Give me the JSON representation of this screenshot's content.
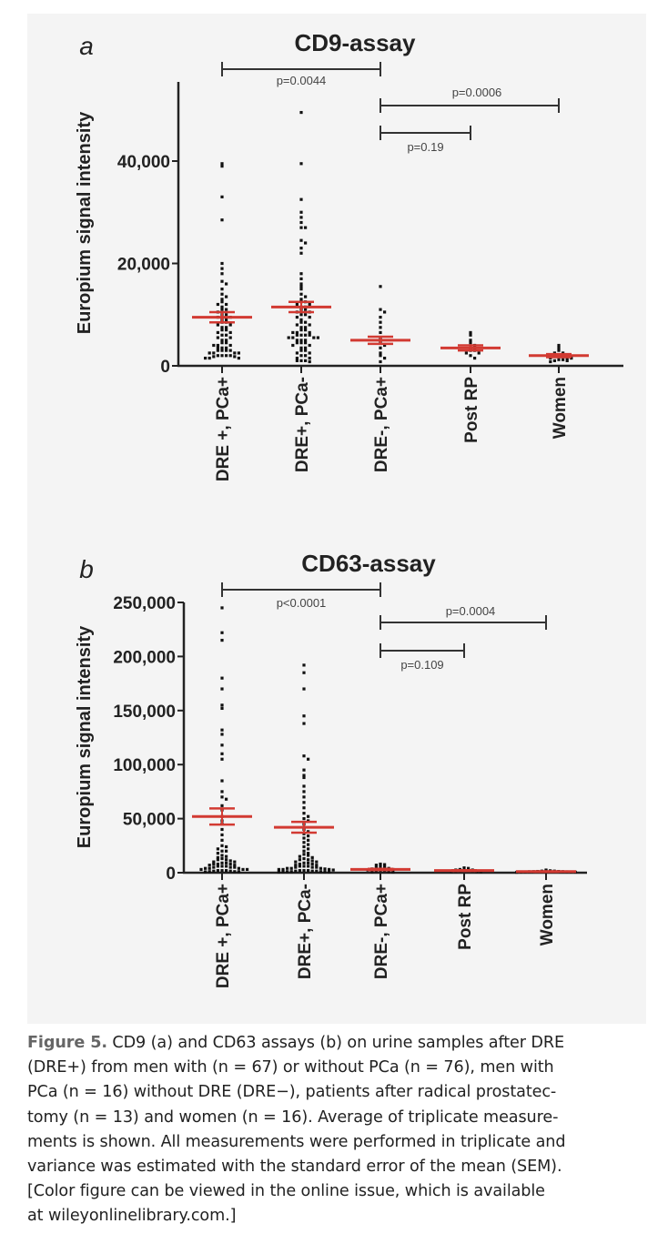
{
  "chart_data": [
    {
      "type": "scatter",
      "panel_label": "a",
      "title": "CD9-assay",
      "ylabel": "Europium signal intensity",
      "ylim": [
        0,
        55000
      ],
      "yticks": [
        0,
        20000,
        40000
      ],
      "ytick_labels": [
        "0",
        "20,000",
        "40,000"
      ],
      "categories": [
        "DRE +, PCa+",
        "DRE+, PCa-",
        "DRE-, PCa+",
        "Post RP",
        "Women"
      ],
      "point_color": "#111111",
      "mean_color": "#d23a32",
      "groups": [
        {
          "mean": 9500,
          "sem": 1000,
          "values": [
            39500,
            39000,
            33000,
            28500,
            20000,
            19000,
            18000,
            16500,
            16000,
            15000,
            14000,
            13500,
            13000,
            12500,
            12000,
            12000,
            11500,
            11000,
            11000,
            10500,
            10000,
            10000,
            9500,
            9500,
            9000,
            9000,
            8500,
            8500,
            8000,
            8000,
            7500,
            7500,
            7000,
            7000,
            6500,
            6500,
            6000,
            6000,
            5500,
            5500,
            5000,
            5000,
            4500,
            4500,
            4000,
            4000,
            4000,
            3500,
            3500,
            3500,
            3000,
            3000,
            3000,
            3000,
            2500,
            2500,
            2500,
            2500,
            2000,
            2000,
            2000,
            2000,
            1800,
            1800,
            1500,
            1500,
            1500
          ]
        },
        {
          "mean": 11500,
          "sem": 1000,
          "values": [
            49500,
            39500,
            32500,
            30000,
            29000,
            28000,
            27000,
            27000,
            24500,
            24000,
            23000,
            22000,
            18000,
            17000,
            16000,
            15500,
            15000,
            14000,
            13500,
            13000,
            12500,
            12500,
            12000,
            12000,
            11500,
            11500,
            11000,
            11000,
            10500,
            10500,
            10000,
            10000,
            9500,
            9500,
            9000,
            8500,
            8500,
            8000,
            8000,
            7500,
            7500,
            7000,
            7000,
            6500,
            6500,
            6500,
            6000,
            6000,
            6000,
            6000,
            5500,
            5500,
            5500,
            5500,
            5000,
            5000,
            5000,
            4500,
            4500,
            4500,
            4000,
            4000,
            3500,
            3500,
            3000,
            3000,
            2500,
            2500,
            2000,
            2000,
            1500,
            1500,
            1000,
            1000,
            1000,
            800
          ]
        },
        {
          "mean": 5000,
          "sem": 700,
          "values": [
            15500,
            11000,
            10500,
            9500,
            8500,
            7500,
            6500,
            5500,
            5000,
            4500,
            4000,
            3500,
            2500,
            2000,
            1500,
            800
          ]
        },
        {
          "mean": 3500,
          "sem": 500,
          "values": [
            6500,
            6000,
            5000,
            4500,
            4000,
            3500,
            3500,
            3000,
            3000,
            2500,
            2500,
            2000,
            1500
          ]
        },
        {
          "mean": 2000,
          "sem": 300,
          "values": [
            4000,
            3500,
            3000,
            2500,
            2500,
            2000,
            2000,
            2000,
            1500,
            1500,
            1500,
            1200,
            1200,
            1000,
            1000,
            800
          ]
        }
      ],
      "comparisons": [
        {
          "from": "DRE +, PCa+",
          "to": "DRE-, PCa+",
          "label": "p=0.0044"
        },
        {
          "from": "DRE-, PCa+",
          "to": "Women",
          "label": "p=0.0006"
        },
        {
          "from": "DRE-, PCa+",
          "to": "Post RP",
          "label": "p=0.19"
        }
      ]
    },
    {
      "type": "scatter",
      "panel_label": "b",
      "title": "CD63-assay",
      "ylabel": "Europium signal intensity",
      "ylim": [
        0,
        250000
      ],
      "yticks": [
        0,
        50000,
        100000,
        150000,
        200000,
        250000
      ],
      "ytick_labels": [
        "0",
        "50,000",
        "100,000",
        "150,000",
        "200,000",
        "250,000"
      ],
      "categories": [
        "DRE +, PCa+",
        "DRE+, PCa-",
        "DRE-, PCa+",
        "Post RP",
        "Women"
      ],
      "point_color": "#111111",
      "mean_color": "#d23a32",
      "groups": [
        {
          "mean": 52000,
          "sem": 7500,
          "values": [
            245000,
            222000,
            215000,
            180000,
            170000,
            155000,
            152000,
            132000,
            128000,
            118000,
            110000,
            105000,
            85000,
            75000,
            70000,
            68000,
            62000,
            58000,
            52000,
            48000,
            45000,
            40000,
            35000,
            30000,
            25000,
            24000,
            22000,
            20000,
            20000,
            18000,
            16000,
            15000,
            14000,
            13000,
            12000,
            12000,
            11000,
            10000,
            10000,
            9000,
            9000,
            8000,
            8000,
            8000,
            7000,
            7000,
            6000,
            6000,
            6000,
            5000,
            5000,
            5000,
            4000,
            4000,
            4000,
            3000,
            3000,
            3000,
            2000,
            2000,
            2000,
            1500,
            1500,
            1000,
            1000,
            1000,
            800
          ]
        },
        {
          "mean": 42000,
          "sem": 5000,
          "values": [
            192000,
            185000,
            170000,
            145000,
            138000,
            108000,
            105000,
            95000,
            90000,
            88000,
            80000,
            75000,
            70000,
            65000,
            60000,
            55000,
            52000,
            50000,
            48000,
            45000,
            42000,
            40000,
            38000,
            36000,
            34000,
            32000,
            30000,
            28000,
            26000,
            24000,
            22000,
            20000,
            18000,
            17000,
            16000,
            15000,
            14000,
            13000,
            12000,
            12000,
            11000,
            10000,
            10000,
            9000,
            9000,
            8000,
            8000,
            7000,
            7000,
            6000,
            6000,
            6000,
            5000,
            5000,
            5000,
            4000,
            4000,
            4000,
            3500,
            3000,
            3000,
            3000,
            2500,
            2000,
            2000,
            2000,
            1500,
            1500,
            1500,
            1000,
            1000,
            1000,
            800,
            800,
            600,
            500
          ]
        },
        {
          "mean": 3000,
          "sem": 600,
          "values": [
            8000,
            7500,
            7000,
            6000,
            5000,
            4500,
            4000,
            3500,
            3000,
            2500,
            2000,
            2000,
            1500,
            1000,
            800,
            500
          ]
        },
        {
          "mean": 2000,
          "sem": 300,
          "values": [
            4500,
            4000,
            3000,
            2500,
            2500,
            2000,
            2000,
            1500,
            1500,
            1200,
            1000,
            1000,
            800
          ]
        },
        {
          "mean": 1000,
          "sem": 150,
          "values": [
            2500,
            2000,
            1800,
            1500,
            1500,
            1200,
            1200,
            1000,
            1000,
            900,
            800,
            700,
            600,
            500,
            500,
            400
          ]
        }
      ],
      "comparisons": [
        {
          "from": "DRE +, PCa+",
          "to": "DRE-, PCa+",
          "label": "p<0.0001"
        },
        {
          "from": "DRE-, PCa+",
          "to": "Women",
          "label": "p=0.0004"
        },
        {
          "from": "DRE-, PCa+",
          "to": "Post RP",
          "label": "p=0.109"
        }
      ]
    }
  ],
  "caption": {
    "figure_label": "Figure 5.",
    "lines": [
      " CD9 (a) and CD63 assays (b) on urine samples after DRE",
      "(DRE+) from men with (n = 67) or without PCa (n = 76), men with",
      "PCa (n = 16) without DRE (DRE−), patients after radical prostatec-",
      "tomy (n = 13) and women (n = 16). Average of triplicate measure-",
      "ments is shown. All measurements were performed in triplicate and",
      "variance was estimated with the standard error of the mean (SEM).",
      "[Color figure can be viewed in the online issue, which is available",
      "at wileyonlinelibrary.com.]"
    ]
  }
}
